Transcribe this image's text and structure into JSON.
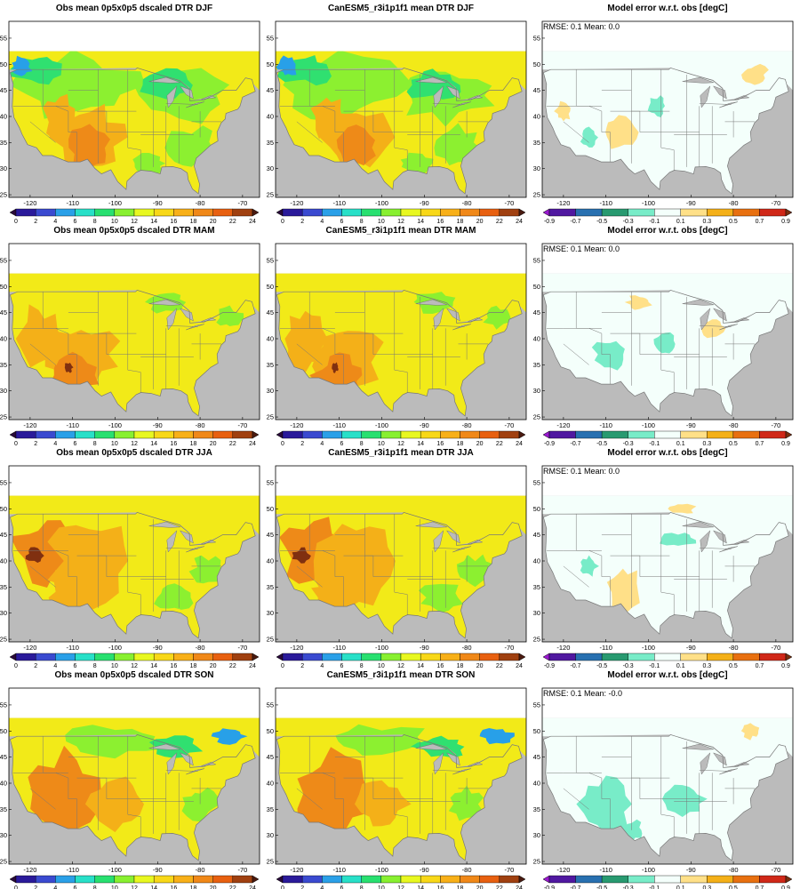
{
  "figure": {
    "rows": [
      {
        "season": "DJF",
        "panels": [
          {
            "kind": "obs",
            "title": "Obs mean 0p5x0p5 dscaled DTR DJF",
            "stats": ""
          },
          {
            "kind": "model",
            "title": "CanESM5_r3i1p1f1 mean DTR DJF",
            "stats": ""
          },
          {
            "kind": "error",
            "title": "Model error w.r.t. obs [degC]",
            "stats": "RMSE: 0.1  Mean: 0.0"
          }
        ]
      },
      {
        "season": "MAM",
        "panels": [
          {
            "kind": "obs",
            "title": "Obs mean 0p5x0p5 dscaled DTR MAM",
            "stats": ""
          },
          {
            "kind": "model",
            "title": "CanESM5_r3i1p1f1 mean DTR MAM",
            "stats": ""
          },
          {
            "kind": "error",
            "title": "Model error w.r.t. obs [degC]",
            "stats": "RMSE: 0.1  Mean: 0.0"
          }
        ]
      },
      {
        "season": "JJA",
        "panels": [
          {
            "kind": "obs",
            "title": "Obs mean 0p5x0p5 dscaled DTR JJA",
            "stats": ""
          },
          {
            "kind": "model",
            "title": "CanESM5_r3i1p1f1 mean DTR JJA",
            "stats": ""
          },
          {
            "kind": "error",
            "title": "Model error w.r.t. obs [degC]",
            "stats": "RMSE: 0.1  Mean: 0.0"
          }
        ]
      },
      {
        "season": "SON",
        "panels": [
          {
            "kind": "obs",
            "title": "Obs mean 0p5x0p5 dscaled DTR SON",
            "stats": ""
          },
          {
            "kind": "model",
            "title": "CanESM5_r3i1p1f1 mean DTR SON",
            "stats": ""
          },
          {
            "kind": "error",
            "title": "Model error w.r.t. obs [degC]",
            "stats": "RMSE: 0.1  Mean: -0.0"
          }
        ]
      }
    ],
    "axes": {
      "lon_ticks": [
        "-120",
        "-110",
        "-100",
        "-90",
        "-80",
        "-70"
      ],
      "lon_values": [
        -120,
        -110,
        -100,
        -90,
        -80,
        -70
      ],
      "lat_ticks": [
        "25",
        "30",
        "35",
        "40",
        "45",
        "50",
        "55"
      ],
      "lat_values": [
        25,
        30,
        35,
        40,
        45,
        50,
        55
      ],
      "lon_range": [
        -125,
        -66
      ],
      "lat_range": [
        24.5,
        55.5
      ]
    },
    "colorbars": {
      "dtr": {
        "labels": [
          "0",
          "2",
          "4",
          "6",
          "8",
          "10",
          "12",
          "14",
          "16",
          "18",
          "20",
          "22",
          "24"
        ],
        "colors": [
          "#2a0a3a",
          "#2a1a9a",
          "#3a4ad0",
          "#2aa0e8",
          "#28e0c8",
          "#28e070",
          "#88f030",
          "#e8f820",
          "#f8d818",
          "#f8b018",
          "#f08818",
          "#e86010",
          "#a04010",
          "#4a1a10"
        ]
      },
      "error": {
        "labels": [
          "-0.9",
          "-0.7",
          "-0.5",
          "-0.3",
          "-0.1",
          "0.1",
          "0.3",
          "0.5",
          "0.7",
          "0.9"
        ],
        "colors": [
          "#9a18d0",
          "#5018a0",
          "#2870b0",
          "#289a70",
          "#78ecc8",
          "#f4fffb",
          "#ffe088",
          "#f4b018",
          "#e87010",
          "#d02818",
          "#7a3010"
        ]
      }
    },
    "land_colors": {
      "background": "#bbbbbb",
      "obs_base": "#f2ea18",
      "obs_warm": "#f4b018",
      "obs_hot": "#ee8a18",
      "obs_peak": "#803010",
      "obs_cool": "#8cf030",
      "obs_cold": "#30e070",
      "obs_ice": "#28a0e8",
      "error_base": "#f4fffb",
      "error_pos": "#ffe088",
      "error_neg": "#78ecc8",
      "borders": "#777777"
    }
  }
}
